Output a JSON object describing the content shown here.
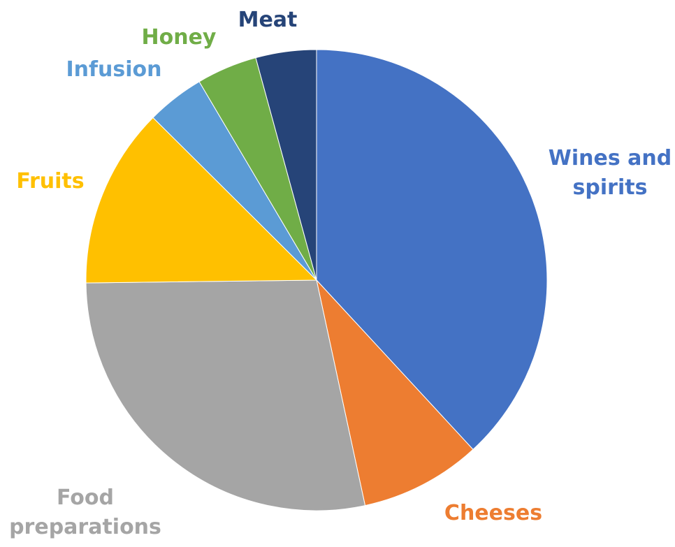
{
  "chart_data": {
    "type": "pie",
    "title": "",
    "slices": [
      {
        "label": "Wines and spirits",
        "label_lines": [
          "Wines and",
          "spirits"
        ],
        "value": 39.5,
        "color": "#4472C4"
      },
      {
        "label": "Cheeses",
        "label_lines": [
          "Cheeses"
        ],
        "value": 8.8,
        "color": "#ED7D31"
      },
      {
        "label": "Food preparations",
        "label_lines": [
          "Food",
          "preparations"
        ],
        "value": 29.2,
        "color": "#A5A5A5"
      },
      {
        "label": "Fruits",
        "label_lines": [
          "Fruits"
        ],
        "value": 13.1,
        "color": "#FFC000"
      },
      {
        "label": "Infusion",
        "label_lines": [
          "Infusion"
        ],
        "value": 4.2,
        "color": "#5B9BD5"
      },
      {
        "label": "Honey",
        "label_lines": [
          "Honey"
        ],
        "value": 4.4,
        "color": "#70AD47"
      },
      {
        "label": "Meat",
        "label_lines": [
          "Meat"
        ],
        "value": 4.4,
        "color": "#264478"
      }
    ],
    "start_angle_deg": 0,
    "direction": "clockwise",
    "legend": "none",
    "data_labels": "category-name-outside"
  }
}
